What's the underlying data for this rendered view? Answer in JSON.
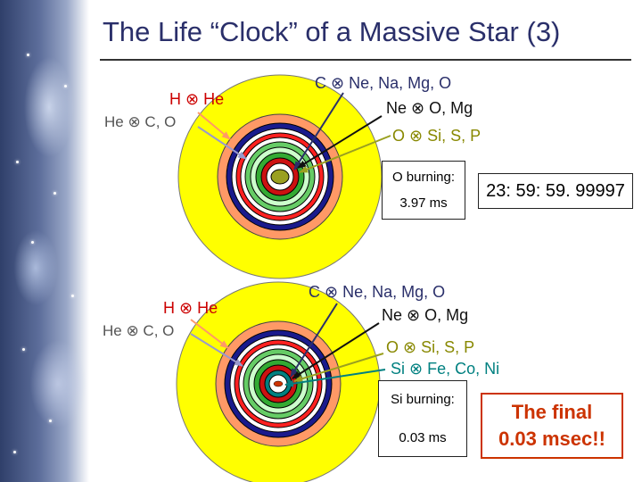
{
  "title": "The Life “Clock” of a Massive Star (3)",
  "top_panel": {
    "labels": {
      "h_to_he": "H ⊗ He",
      "he_to_co": "He ⊗ C, O",
      "c_to": "C ⊗ Ne, Na, Mg, O",
      "ne_to": "Ne ⊗ O, Mg",
      "o_to": "O ⊗ Si, S, P"
    },
    "phase_box": {
      "line1": "O burning:",
      "line2": "3.97 ms"
    },
    "clock": "23: 59: 59. 99997"
  },
  "bottom_panel": {
    "labels": {
      "h_to_he": "H ⊗ He",
      "he_to_co": "He ⊗ C, O",
      "c_to": "C ⊗ Ne, Na, Mg, O",
      "ne_to": "Ne ⊗ O, Mg",
      "o_to": "O ⊗ Si, S, P",
      "si_to": "Si ⊗ Fe, Co, Ni"
    },
    "phase_box": {
      "line1": "Si burning:",
      "line2": "0.03 ms"
    },
    "final_box": {
      "line1": "The final",
      "line2": "0.03 msec!!"
    }
  },
  "colors": {
    "title": "#2a2f6a",
    "hydrogen_shell": "#ffff00",
    "helium_shell": "#ff9966",
    "carbon_shell": "#000080",
    "neon_shell": "#ff0000",
    "oxygen_shell": "#99cc33",
    "silicon_shell": "#008080",
    "core": "#9aa020",
    "final_text": "#cc3300",
    "label_gray": "#555555",
    "label_red": "#cc0000",
    "label_olive": "#888800",
    "label_teal": "#008080"
  }
}
